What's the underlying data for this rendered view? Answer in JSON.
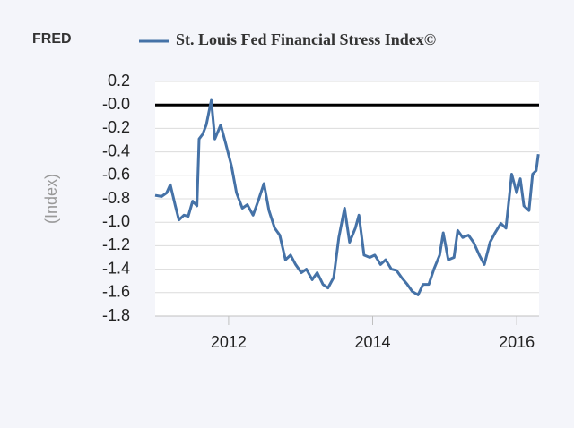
{
  "chart_data": {
    "type": "line",
    "logo": "FRED",
    "y_label": "(Index)",
    "series": [
      {
        "name": "St. Louis Fed Financial Stress Index©",
        "color": "#4572a7",
        "x": [
          2010.98,
          2011.07,
          2011.14,
          2011.19,
          2011.26,
          2011.31,
          2011.38,
          2011.44,
          2011.5,
          2011.56,
          2011.59,
          2011.64,
          2011.69,
          2011.76,
          2011.81,
          2011.89,
          2011.96,
          2012.04,
          2012.11,
          2012.19,
          2012.26,
          2012.34,
          2012.41,
          2012.49,
          2012.56,
          2012.64,
          2012.71,
          2012.79,
          2012.86,
          2012.93,
          2013.01,
          2013.08,
          2013.16,
          2013.23,
          2013.31,
          2013.38,
          2013.46,
          2013.53,
          2013.61,
          2013.68,
          2013.76,
          2013.81,
          2013.88,
          2013.96,
          2014.03,
          2014.11,
          2014.18,
          2014.26,
          2014.33,
          2014.4,
          2014.48,
          2014.55,
          2014.63,
          2014.7,
          2014.78,
          2014.85,
          2014.93,
          2014.98,
          2015.05,
          2015.13,
          2015.18,
          2015.25,
          2015.33,
          2015.4,
          2015.48,
          2015.55,
          2015.63,
          2015.7,
          2015.78,
          2015.85,
          2015.93,
          2016.0,
          2016.05,
          2016.1,
          2016.17,
          2016.22,
          2016.27,
          2016.3
        ],
        "values": [
          -0.77,
          -0.78,
          -0.75,
          -0.68,
          -0.86,
          -0.98,
          -0.94,
          -0.95,
          -0.82,
          -0.86,
          -0.29,
          -0.25,
          -0.17,
          0.04,
          -0.29,
          -0.17,
          -0.33,
          -0.52,
          -0.75,
          -0.88,
          -0.85,
          -0.94,
          -0.82,
          -0.67,
          -0.9,
          -1.05,
          -1.11,
          -1.32,
          -1.28,
          -1.36,
          -1.43,
          -1.4,
          -1.49,
          -1.43,
          -1.53,
          -1.56,
          -1.47,
          -1.13,
          -0.88,
          -1.17,
          -1.05,
          -0.94,
          -1.28,
          -1.3,
          -1.28,
          -1.36,
          -1.32,
          -1.4,
          -1.41,
          -1.47,
          -1.53,
          -1.59,
          -1.62,
          -1.53,
          -1.53,
          -1.4,
          -1.28,
          -1.09,
          -1.32,
          -1.3,
          -1.07,
          -1.13,
          -1.11,
          -1.17,
          -1.28,
          -1.36,
          -1.17,
          -1.09,
          -1.01,
          -1.05,
          -0.59,
          -0.75,
          -0.63,
          -0.86,
          -0.9,
          -0.59,
          -0.56,
          -0.42
        ]
      }
    ],
    "xlim": [
      2010.98,
      2016.31
    ],
    "xticks": [
      2012,
      2014,
      2016
    ],
    "ylim": [
      -1.8,
      0.2
    ],
    "yticks": [
      0.2,
      {
        "value": 0,
        "label": "-0.0"
      },
      -0.2,
      -0.4,
      -0.6,
      -0.8,
      {
        "value": -1,
        "label": "-1.0"
      },
      -1.2,
      -1.4,
      -1.6,
      -1.8
    ],
    "grid": true,
    "zero_line": true
  }
}
